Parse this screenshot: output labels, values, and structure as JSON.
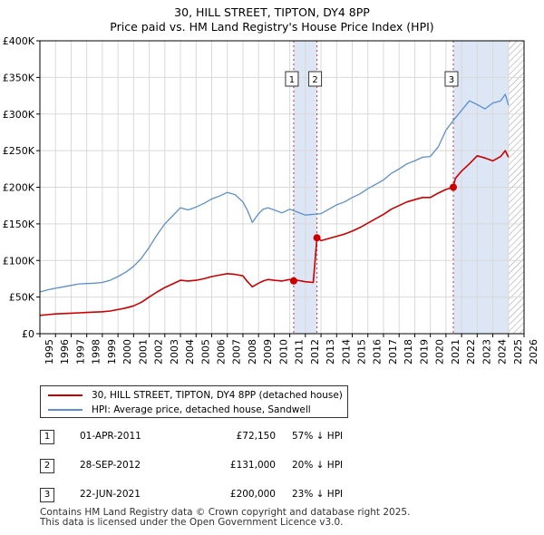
{
  "header": {
    "title": "30, HILL STREET, TIPTON, DY4 8PP",
    "subtitle": "Price paid vs. HM Land Registry's House Price Index (HPI)"
  },
  "legend": {
    "items": [
      {
        "label": "30, HILL STREET, TIPTON, DY4 8PP (detached house)",
        "color": "#cc0000"
      },
      {
        "label": "HPI: Average price, detached house, Sandwell",
        "color": "#5b8fd0"
      }
    ]
  },
  "sales": [
    {
      "num": "1",
      "date": "01-APR-2011",
      "price": "£72,150",
      "relation": "57% ↓ HPI"
    },
    {
      "num": "2",
      "date": "28-SEP-2012",
      "price": "£131,000",
      "relation": "20% ↓ HPI"
    },
    {
      "num": "3",
      "date": "22-JUN-2021",
      "price": "£200,000",
      "relation": "23% ↓ HPI"
    }
  ],
  "footer": {
    "line1": "Contains HM Land Registry data © Crown copyright and database right 2025.",
    "line2": "This data is licensed under the Open Government Licence v3.0."
  },
  "chart_data": {
    "type": "line",
    "title": "30, HILL STREET, TIPTON, DY4 8PP",
    "subtitle": "Price paid vs. HM Land Registry's House Price Index (HPI)",
    "xlabel": "",
    "ylabel": "",
    "xlim": [
      1995,
      2026
    ],
    "ylim": [
      0,
      400000
    ],
    "x_ticks": [
      1995,
      1996,
      1997,
      1998,
      1999,
      2000,
      2001,
      2002,
      2003,
      2004,
      2005,
      2006,
      2007,
      2008,
      2009,
      2010,
      2011,
      2012,
      2013,
      2014,
      2015,
      2016,
      2017,
      2018,
      2019,
      2020,
      2021,
      2022,
      2023,
      2024,
      2025,
      2026
    ],
    "y_ticks": [
      {
        "value": 0,
        "label": "£0"
      },
      {
        "value": 50000,
        "label": "£50K"
      },
      {
        "value": 100000,
        "label": "£100K"
      },
      {
        "value": 150000,
        "label": "£150K"
      },
      {
        "value": 200000,
        "label": "£200K"
      },
      {
        "value": 250000,
        "label": "£250K"
      },
      {
        "value": 300000,
        "label": "£300K"
      },
      {
        "value": 350000,
        "label": "£350K"
      },
      {
        "value": 400000,
        "label": "£400K"
      }
    ],
    "grid": true,
    "colors": {
      "property": "#cc0000",
      "hpi": "#5b8fd0",
      "highlight": "#dce6f5",
      "grid": "#d9d9d9",
      "vline": "#cc0000"
    },
    "highlight_bands": [
      {
        "from": 2011.25,
        "to": 2012.74
      },
      {
        "from": 2021.47,
        "to": 2025.0
      }
    ],
    "future_hatch_from": 2025.0,
    "sale_markers": [
      {
        "label": "1",
        "x": 2011.25,
        "y": 72150
      },
      {
        "label": "2",
        "x": 2012.74,
        "y": 131000
      },
      {
        "label": "3",
        "x": 2021.47,
        "y": 200000
      }
    ],
    "series": [
      {
        "name": "HPI: Average price, detached house, Sandwell",
        "x": [
          1995.0,
          1995.5,
          1996.0,
          1996.5,
          1997.0,
          1997.5,
          1998.0,
          1998.5,
          1999.0,
          1999.5,
          2000.0,
          2000.5,
          2001.0,
          2001.5,
          2002.0,
          2002.5,
          2003.0,
          2003.5,
          2004.0,
          2004.5,
          2005.0,
          2005.5,
          2006.0,
          2006.5,
          2007.0,
          2007.5,
          2008.0,
          2008.3,
          2008.6,
          2009.0,
          2009.3,
          2009.6,
          2010.0,
          2010.5,
          2011.0,
          2011.5,
          2012.0,
          2012.5,
          2013.0,
          2013.5,
          2014.0,
          2014.5,
          2015.0,
          2015.5,
          2016.0,
          2016.5,
          2017.0,
          2017.5,
          2018.0,
          2018.5,
          2019.0,
          2019.5,
          2020.0,
          2020.5,
          2021.0,
          2021.5,
          2022.0,
          2022.5,
          2023.0,
          2023.5,
          2024.0,
          2024.5,
          2024.8,
          2025.0
        ],
        "values": [
          57000,
          60000,
          62000,
          64000,
          66000,
          68000,
          68500,
          69000,
          70000,
          73000,
          78000,
          84000,
          92000,
          103000,
          118000,
          135000,
          150000,
          161000,
          172000,
          169000,
          173000,
          178000,
          184000,
          188000,
          193000,
          190000,
          180000,
          168000,
          152000,
          164000,
          170000,
          172000,
          169000,
          165000,
          170000,
          166000,
          162000,
          163000,
          164000,
          170000,
          176000,
          180000,
          186000,
          191000,
          198000,
          204000,
          210000,
          219000,
          225000,
          232000,
          236000,
          241000,
          242000,
          255000,
          278000,
          292000,
          305000,
          318000,
          313000,
          307000,
          315000,
          318000,
          327000,
          312000
        ]
      },
      {
        "name": "30, HILL STREET, TIPTON, DY4 8PP (detached house)",
        "x": [
          1995.0,
          1995.5,
          1996.0,
          1996.5,
          1997.0,
          1997.5,
          1998.0,
          1998.5,
          1999.0,
          1999.5,
          2000.0,
          2000.5,
          2001.0,
          2001.5,
          2002.0,
          2002.5,
          2003.0,
          2003.5,
          2004.0,
          2004.5,
          2005.0,
          2005.5,
          2006.0,
          2006.5,
          2007.0,
          2007.5,
          2008.0,
          2008.3,
          2008.6,
          2009.0,
          2009.3,
          2009.6,
          2010.0,
          2010.5,
          2011.0,
          2011.25,
          2011.5,
          2012.0,
          2012.5,
          2012.74,
          2013.0,
          2013.5,
          2014.0,
          2014.5,
          2015.0,
          2015.5,
          2016.0,
          2016.5,
          2017.0,
          2017.5,
          2018.0,
          2018.5,
          2019.0,
          2019.5,
          2020.0,
          2020.5,
          2021.0,
          2021.47,
          2021.6,
          2022.0,
          2022.5,
          2023.0,
          2023.5,
          2024.0,
          2024.5,
          2024.8,
          2025.0
        ],
        "values": [
          25000,
          26000,
          27000,
          27500,
          28000,
          28500,
          29000,
          29500,
          30000,
          31000,
          33000,
          35000,
          38000,
          43000,
          50000,
          57000,
          63000,
          68000,
          73000,
          72000,
          73000,
          75000,
          78000,
          80000,
          82000,
          81000,
          79000,
          71000,
          64000,
          69000,
          72000,
          74000,
          73000,
          72000,
          74000,
          72150,
          73000,
          71000,
          70000,
          131000,
          127000,
          130000,
          133000,
          136000,
          140000,
          145000,
          151000,
          157000,
          163000,
          170000,
          175000,
          180000,
          183000,
          186000,
          186000,
          192000,
          197000,
          200000,
          212000,
          222000,
          232000,
          243000,
          240000,
          236000,
          242000,
          250000,
          241000
        ]
      }
    ]
  }
}
